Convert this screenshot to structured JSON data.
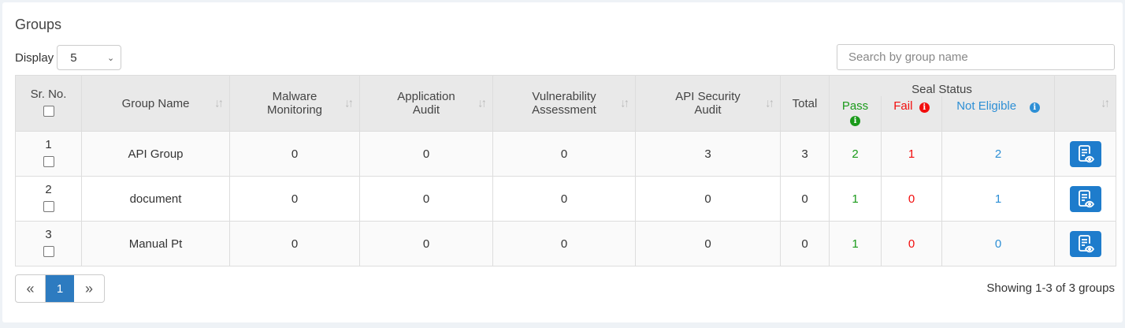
{
  "title": "Groups",
  "display": {
    "label": "Display",
    "value": "5"
  },
  "search": {
    "placeholder": "Search by group name"
  },
  "columns": {
    "sr": "Sr. No.",
    "name": "Group Name",
    "malware": "Malware Monitoring",
    "app": "Application Audit",
    "vuln": "Vulnerability Assessment",
    "api": "API Security Audit",
    "total": "Total",
    "seal": "Seal Status",
    "pass": "Pass",
    "fail": "Fail",
    "ne": "Not Eligible"
  },
  "rows": [
    {
      "sr": "1",
      "name": "API Group",
      "malware": "0",
      "app": "0",
      "vuln": "0",
      "api": "3",
      "total": "3",
      "pass": "2",
      "fail": "1",
      "ne": "2"
    },
    {
      "sr": "2",
      "name": "document",
      "malware": "0",
      "app": "0",
      "vuln": "0",
      "api": "0",
      "total": "0",
      "pass": "1",
      "fail": "0",
      "ne": "1"
    },
    {
      "sr": "3",
      "name": "Manual Pt",
      "malware": "0",
      "app": "0",
      "vuln": "0",
      "api": "0",
      "total": "0",
      "pass": "1",
      "fail": "0",
      "ne": "0"
    }
  ],
  "pagination": {
    "prev": "«",
    "current": "1",
    "next": "»",
    "summary": "Showing 1-3 of 3 groups"
  },
  "colors": {
    "pass": "#1a9a1a",
    "fail": "#f20d0d",
    "not_eligible": "#2d8fd5",
    "accent": "#1e7ccc"
  }
}
